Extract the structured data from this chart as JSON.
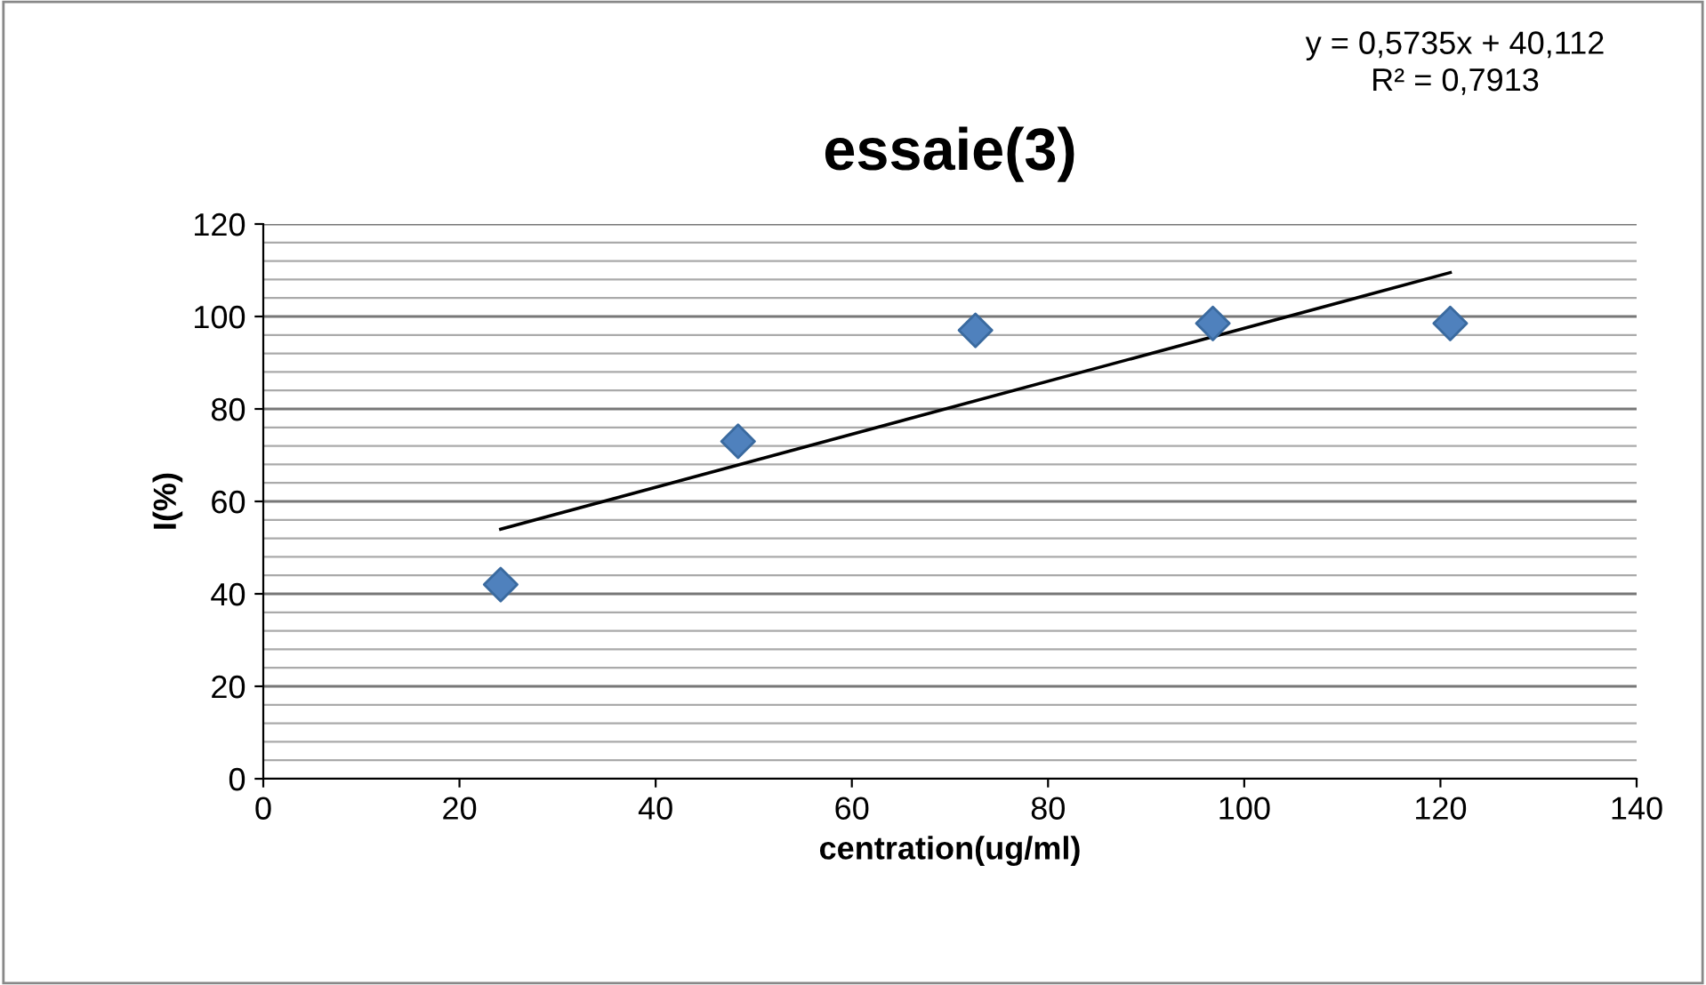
{
  "chart_data": {
    "type": "scatter",
    "title": "essaie(3)",
    "xlabel": "centration(ug/ml)",
    "ylabel": "I(%)",
    "annotations": [
      "y = 0,5735x + 40,112\nR² = 0,7913"
    ],
    "series": [
      {
        "color": "#4f81bd",
        "marker": "diamond",
        "x": [
          24.2,
          48.4,
          72.6,
          96.8,
          121
        ],
        "values": [
          42,
          73,
          97,
          98.5,
          98.5
        ]
      },
      {
        "type": "line",
        "color": "#000000",
        "marker": "none",
        "line_style": "solid",
        "x": [
          24.2,
          121
        ],
        "values": [
          54.0,
          109.5
        ]
      }
    ],
    "xlim": [
      0,
      140
    ],
    "xticks": [
      0,
      20,
      40,
      60,
      80,
      100,
      120,
      140
    ],
    "ylim": [
      0,
      120
    ],
    "yticks": [
      0,
      20,
      40,
      60,
      80,
      100,
      120
    ],
    "grid": "y",
    "legend": false
  }
}
